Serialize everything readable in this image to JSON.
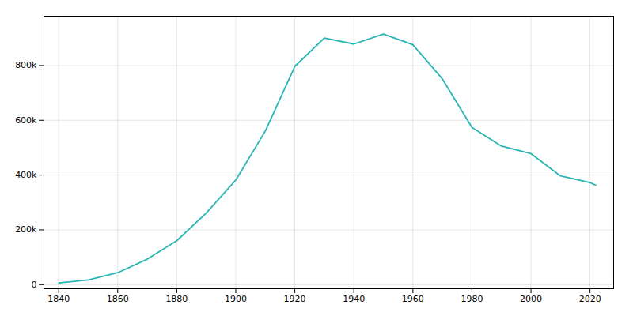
{
  "chart_data": {
    "type": "line",
    "x": [
      1840,
      1850,
      1860,
      1870,
      1880,
      1890,
      1900,
      1910,
      1920,
      1930,
      1940,
      1950,
      1960,
      1970,
      1980,
      1990,
      2000,
      2010,
      2020,
      2022
    ],
    "values": [
      6071,
      17034,
      43417,
      92829,
      160146,
      261353,
      381768,
      560663,
      796841,
      900429,
      878336,
      914808,
      876050,
      750903,
      573822,
      505616,
      478403,
      396815,
      372624,
      362656
    ],
    "color": "#2ab5b5",
    "xlim": [
      1835,
      2028
    ],
    "ylim": [
      -15000,
      980000
    ],
    "xticks": [
      1840,
      1860,
      1880,
      1900,
      1920,
      1940,
      1960,
      1980,
      2000,
      2020
    ],
    "yticks": [
      0,
      {
        "value": 200000,
        "label": "200k"
      },
      {
        "value": 400000,
        "label": "400k"
      },
      {
        "value": 600000,
        "label": "600k"
      },
      {
        "value": 800000,
        "label": "800k"
      }
    ],
    "grid": true
  }
}
